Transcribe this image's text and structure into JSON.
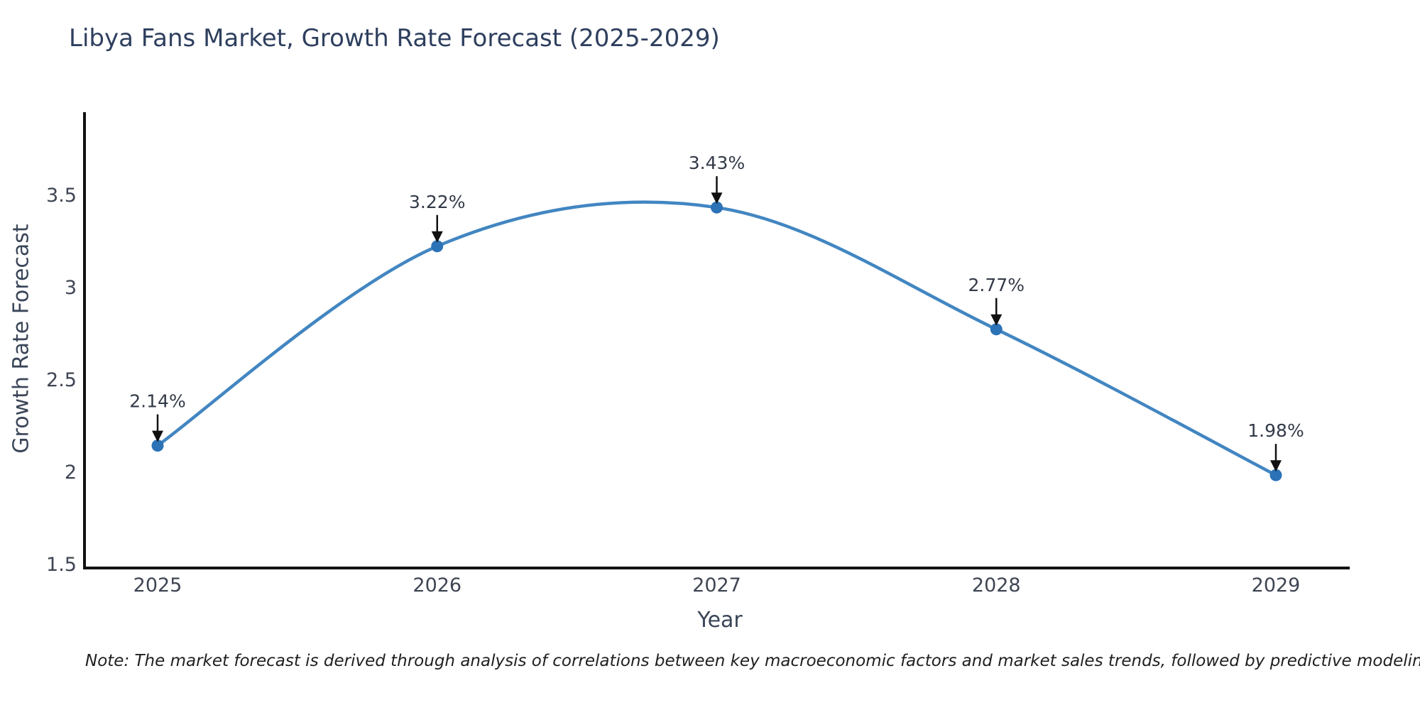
{
  "chart_data": {
    "type": "line",
    "title": "Libya Fans Market, Growth Rate Forecast (2025-2029)",
    "x": [
      "2025",
      "2026",
      "2027",
      "2028",
      "2029"
    ],
    "series": [
      {
        "name": "Growth Rate Forecast",
        "values": [
          2.14,
          3.22,
          3.43,
          2.77,
          1.98
        ]
      }
    ],
    "point_labels": [
      "2.14%",
      "3.22%",
      "3.43%",
      "2.77%",
      "1.98%"
    ],
    "xlabel": "Year",
    "ylabel": "Growth Rate Forecast",
    "ylim": [
      1.5,
      3.97
    ],
    "yticks": [
      "1.5",
      "2",
      "2.5",
      "3",
      "3.5"
    ],
    "ytick_values": [
      1.5,
      2,
      2.5,
      3,
      3.5
    ],
    "grid": false,
    "legend": "none",
    "curve": "spline",
    "annotations": "arrow-down-to-point",
    "colors": {
      "line": "#4286c1",
      "marker": "#2c72b6",
      "arrow": "#111111",
      "axis": "#111111",
      "title": "#2e3f5e",
      "tick": "#3e4553",
      "axis_title": "#3a4558",
      "annotation": "#333a47",
      "note": "#1f1f1f",
      "background": "#ffffff"
    },
    "note": "Note: The market forecast is derived through analysis of correlations between key macroeconomic factors and market sales trends, followed by predictive modeling to project future sales"
  }
}
